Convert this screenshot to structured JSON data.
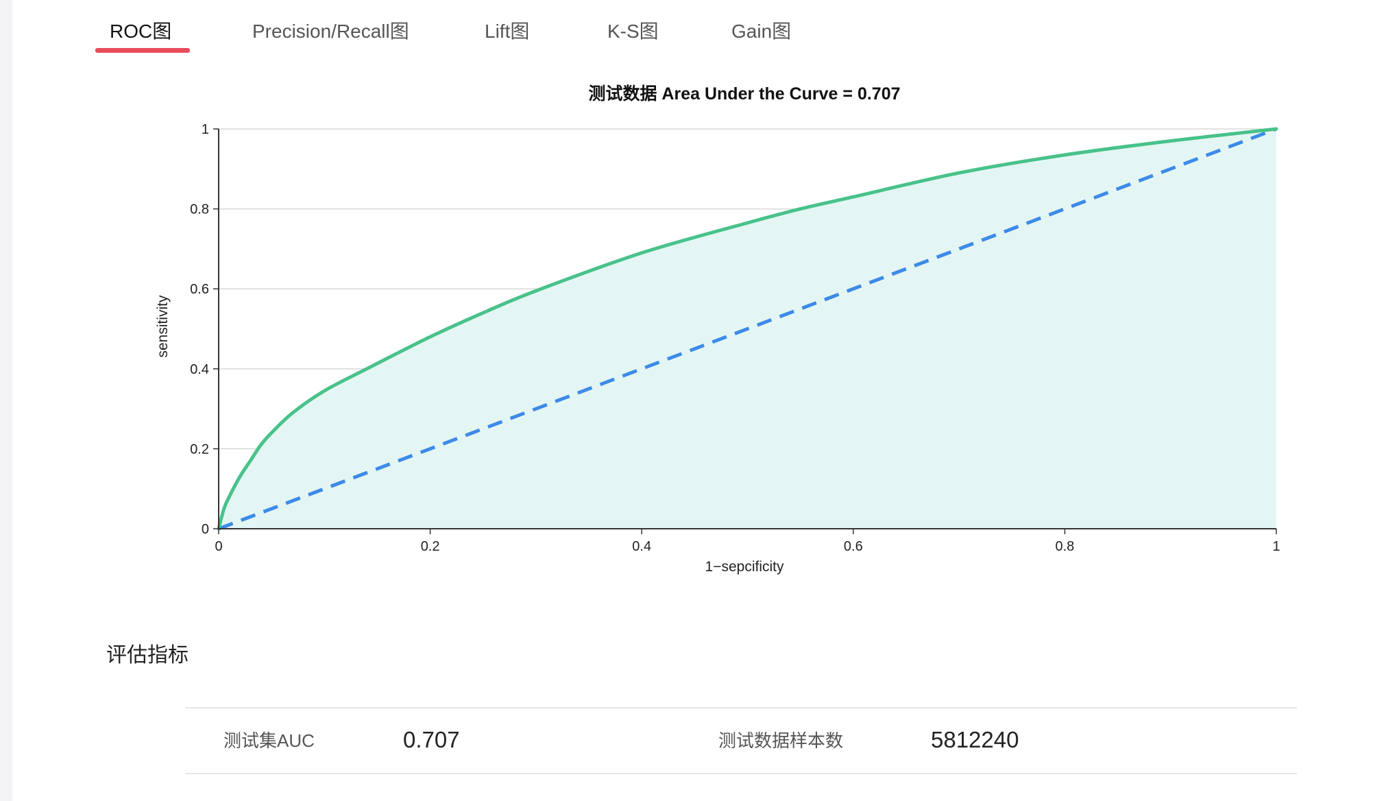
{
  "tabs": [
    {
      "label": "ROC图",
      "active": true
    },
    {
      "label": "Precision/Recall图",
      "active": false
    },
    {
      "label": "Lift图",
      "active": false
    },
    {
      "label": "K-S图",
      "active": false
    },
    {
      "label": "Gain图",
      "active": false
    }
  ],
  "colors": {
    "active_tab_underline": "#e84d5b",
    "roc_curve": "#48c28a",
    "roc_fill": "#e4f6f4",
    "baseline": "#3d8ae8",
    "gridline": "#d9d9d9"
  },
  "chart_data": {
    "type": "line",
    "title": "测试数据 Area Under the Curve = 0.707",
    "xlabel": "1−sepcificity",
    "ylabel": "sensitivity",
    "xlim": [
      0,
      1
    ],
    "ylim": [
      0,
      1
    ],
    "x_ticks": [
      "0",
      "0.2",
      "0.4",
      "0.6",
      "0.8",
      "1"
    ],
    "y_ticks": [
      "0",
      "0.2",
      "0.4",
      "0.6",
      "0.8",
      "1"
    ],
    "grid": "horizontal",
    "legend": "none",
    "series": [
      {
        "style": "solid-area",
        "x": [
          0,
          0.005,
          0.01,
          0.02,
          0.03,
          0.04,
          0.05,
          0.07,
          0.1,
          0.14,
          0.2,
          0.25,
          0.3,
          0.4,
          0.5,
          0.55,
          0.6,
          0.7,
          0.8,
          0.9,
          1
        ],
        "y": [
          0,
          0.05,
          0.08,
          0.13,
          0.17,
          0.21,
          0.24,
          0.29,
          0.345,
          0.4,
          0.48,
          0.54,
          0.595,
          0.69,
          0.765,
          0.8,
          0.83,
          0.89,
          0.935,
          0.97,
          1
        ]
      },
      {
        "style": "dashed",
        "x": [
          0,
          1
        ],
        "y": [
          0,
          1
        ]
      }
    ]
  },
  "metrics_section": {
    "title": "评估指标",
    "auc_label": "测试集AUC",
    "auc_value": "0.707",
    "samples_label": "测试数据样本数",
    "samples_value": "5812240"
  }
}
